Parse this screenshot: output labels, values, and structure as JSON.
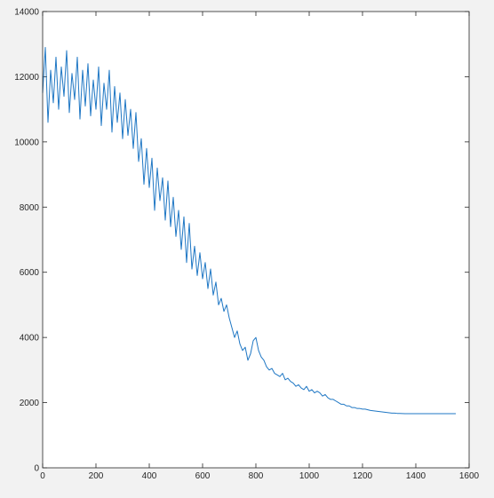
{
  "chart_data": {
    "type": "line",
    "title": "",
    "xlabel": "",
    "ylabel": "",
    "xlim": [
      0,
      1600
    ],
    "ylim": [
      0,
      14000
    ],
    "xticks": [
      0,
      200,
      400,
      600,
      800,
      1000,
      1200,
      1400,
      1600
    ],
    "yticks": [
      0,
      2000,
      4000,
      6000,
      8000,
      10000,
      12000,
      14000
    ],
    "xtick_labels": [
      "0",
      "200",
      "400",
      "600",
      "800",
      "1000",
      "1200",
      "1400",
      "1600"
    ],
    "ytick_labels": [
      "0",
      "2000",
      "4000",
      "6000",
      "8000",
      "10000",
      "12000",
      "14000"
    ],
    "grid": false,
    "legend": "none",
    "series": [
      {
        "color": "#1f77c4",
        "x": [
          0,
          10,
          20,
          30,
          40,
          50,
          60,
          70,
          80,
          90,
          100,
          110,
          120,
          130,
          140,
          150,
          160,
          170,
          180,
          190,
          200,
          210,
          220,
          230,
          240,
          250,
          260,
          270,
          280,
          290,
          300,
          310,
          320,
          330,
          340,
          350,
          360,
          370,
          380,
          390,
          400,
          410,
          420,
          430,
          440,
          450,
          460,
          470,
          480,
          490,
          500,
          510,
          520,
          530,
          540,
          550,
          560,
          570,
          580,
          590,
          600,
          610,
          620,
          630,
          640,
          650,
          660,
          670,
          680,
          690,
          700,
          710,
          720,
          730,
          740,
          750,
          760,
          770,
          780,
          790,
          800,
          810,
          820,
          830,
          840,
          850,
          860,
          870,
          880,
          890,
          900,
          910,
          920,
          930,
          940,
          950,
          960,
          970,
          980,
          990,
          1000,
          1010,
          1020,
          1030,
          1040,
          1050,
          1060,
          1070,
          1080,
          1090,
          1100,
          1110,
          1120,
          1130,
          1140,
          1150,
          1160,
          1170,
          1180,
          1190,
          1200,
          1210,
          1220,
          1230,
          1240,
          1250,
          1260,
          1270,
          1280,
          1290,
          1300,
          1310,
          1320,
          1330,
          1340,
          1350,
          1360,
          1370,
          1380,
          1390,
          1400,
          1410,
          1420,
          1430,
          1440,
          1450,
          1460,
          1470,
          1480,
          1490,
          1500,
          1510,
          1520,
          1530,
          1540,
          1550
        ],
        "y": [
          11500,
          12900,
          10600,
          12200,
          11200,
          12600,
          11000,
          12300,
          11400,
          12800,
          10900,
          12100,
          11300,
          12600,
          10700,
          12200,
          11100,
          12400,
          10800,
          11900,
          11000,
          12300,
          10500,
          11800,
          11000,
          12200,
          10300,
          11700,
          10600,
          11500,
          10100,
          11300,
          10200,
          11000,
          9800,
          10900,
          9400,
          10100,
          8700,
          9800,
          8600,
          9500,
          7900,
          9200,
          8200,
          8900,
          7600,
          8800,
          7400,
          8300,
          7100,
          7900,
          6700,
          7700,
          6300,
          7500,
          6100,
          6800,
          5900,
          6600,
          5800,
          6300,
          5500,
          6100,
          5300,
          5700,
          5000,
          5200,
          4800,
          5000,
          4600,
          4300,
          4000,
          4200,
          3800,
          3600,
          3700,
          3300,
          3500,
          3900,
          4000,
          3600,
          3400,
          3300,
          3100,
          3000,
          3050,
          2900,
          2850,
          2800,
          2900,
          2700,
          2750,
          2650,
          2600,
          2500,
          2550,
          2450,
          2400,
          2500,
          2350,
          2400,
          2300,
          2350,
          2300,
          2200,
          2250,
          2150,
          2100,
          2100,
          2050,
          2000,
          1950,
          1950,
          1900,
          1900,
          1850,
          1850,
          1820,
          1820,
          1800,
          1800,
          1780,
          1760,
          1750,
          1740,
          1730,
          1720,
          1710,
          1700,
          1690,
          1680,
          1680,
          1670,
          1670,
          1665,
          1660,
          1660,
          1660,
          1660,
          1660,
          1660,
          1660,
          1660,
          1660,
          1660,
          1660,
          1660,
          1660,
          1660,
          1660,
          1660,
          1660,
          1660,
          1660,
          1660
        ]
      }
    ]
  }
}
